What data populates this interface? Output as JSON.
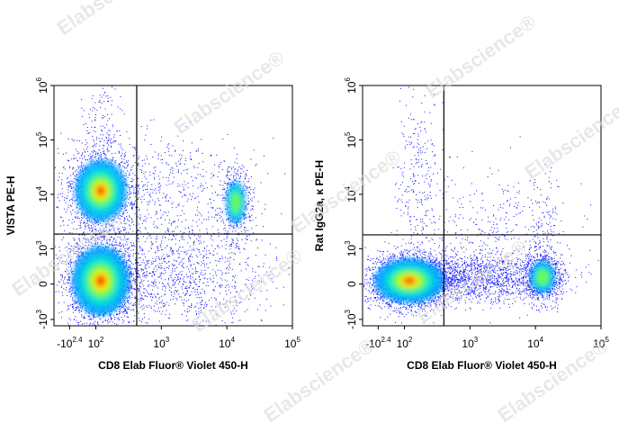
{
  "watermark": "Elabscience®",
  "chart_data": [
    {
      "type": "density",
      "x_label": "CD8 Elab Fluor® Violet 450-H",
      "y_label": "VISTA PE-H",
      "xlim": [
        -460,
        100000
      ],
      "ylim": [
        -1180,
        1000000
      ],
      "xticks": [
        {
          "value": -251,
          "label": "-10",
          "exp": "2.4"
        },
        {
          "value": 100,
          "label": "10",
          "exp": "2"
        },
        {
          "value": 1000,
          "label": "10",
          "exp": "3"
        },
        {
          "value": 10000,
          "label": "10",
          "exp": "4"
        },
        {
          "value": 100000,
          "label": "10",
          "exp": "5"
        }
      ],
      "yticks": [
        {
          "value": -1000,
          "label": "-10",
          "exp": "3"
        },
        0,
        {
          "value": 1000,
          "label": "10",
          "exp": "3"
        },
        {
          "value": 10000,
          "label": "10",
          "exp": "4"
        },
        {
          "value": 100000,
          "label": "10",
          "exp": "5"
        },
        {
          "value": 1000000,
          "label": "10",
          "exp": "6"
        }
      ],
      "gate": {
        "x": 421,
        "y": 1860
      }
    },
    {
      "type": "density",
      "x_label": "CD8 Elab Fluor® Violet 450-H",
      "y_label": "Rat IgG2a, κ PE-H",
      "xlim": [
        -460,
        100000
      ],
      "ylim": [
        -1180,
        1000000
      ],
      "xticks": [
        {
          "value": -251,
          "label": "-10",
          "exp": "2.4"
        },
        {
          "value": 100,
          "label": "10",
          "exp": "2"
        },
        {
          "value": 1000,
          "label": "10",
          "exp": "3"
        },
        {
          "value": 10000,
          "label": "10",
          "exp": "4"
        },
        {
          "value": 100000,
          "label": "10",
          "exp": "5"
        }
      ],
      "yticks": [
        {
          "value": -1000,
          "label": "-10",
          "exp": "3"
        },
        0,
        {
          "value": 1000,
          "label": "10",
          "exp": "3"
        },
        {
          "value": 10000,
          "label": "10",
          "exp": "4"
        },
        {
          "value": 100000,
          "label": "10",
          "exp": "5"
        },
        {
          "value": 1000000,
          "label": "10",
          "exp": "6"
        }
      ],
      "gate": {
        "x": 400,
        "y": 1800
      }
    }
  ]
}
